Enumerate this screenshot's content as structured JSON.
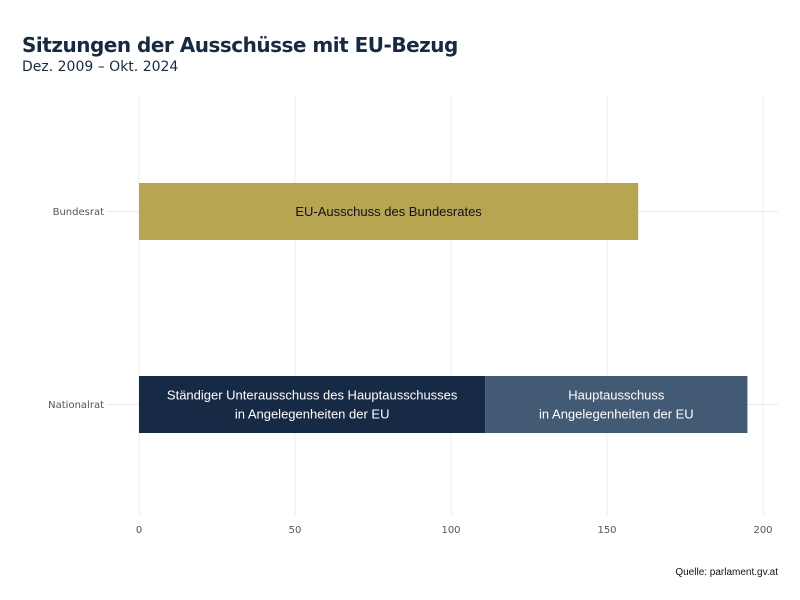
{
  "title": "Sitzungen der Ausschüsse mit EU-Bezug",
  "subtitle": "Dez. 2009 – Okt. 2024",
  "source": "Quelle: parlament.gv.at",
  "chart_data": {
    "type": "bar",
    "orientation": "horizontal",
    "stacked": true,
    "categories": [
      "Bundesrat",
      "Nationalrat"
    ],
    "segments": [
      {
        "category": "Bundesrat",
        "label": [
          "EU-Ausschuss des Bundesrates"
        ],
        "value": 160,
        "color": "#b8a552",
        "text_color": "#111111"
      },
      {
        "category": "Nationalrat",
        "label": [
          "Ständiger Unterausschuss des Hauptausschusses",
          "in Angelegenheiten der EU"
        ],
        "value": 111,
        "color": "#172a45",
        "text_color": "#ffffff"
      },
      {
        "category": "Nationalrat",
        "label": [
          "Hauptausschuss",
          "in Angelegenheiten der EU"
        ],
        "value": 84,
        "color": "#435a75",
        "text_color": "#ffffff"
      }
    ],
    "xlim": [
      0,
      200
    ],
    "x_ticks": [
      "0",
      "50",
      "100",
      "150",
      "200"
    ],
    "grid": true,
    "legend": "none"
  }
}
